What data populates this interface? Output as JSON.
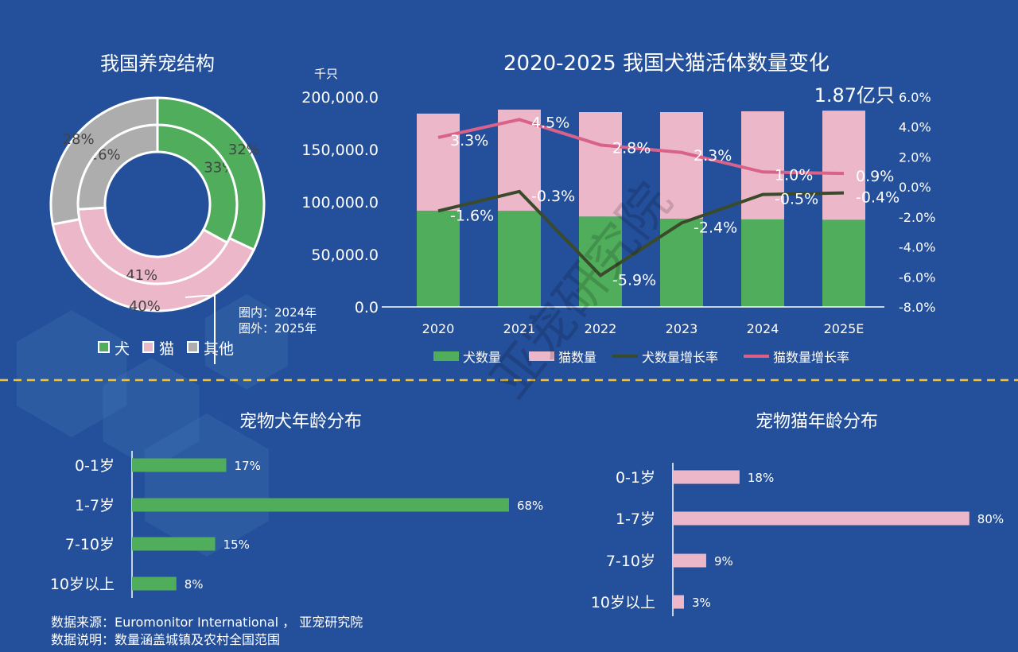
{
  "colors": {
    "dog": "#4fad5b",
    "cat": "#ecb8c9",
    "other": "#adadad",
    "dog_line": "#3a4a2a",
    "cat_line": "#d9628a",
    "divider": "#f2c23a",
    "background": "#244f9a"
  },
  "watermark": "亚宠研究院",
  "chart_data": [
    {
      "type": "pie",
      "title": "我国养宠结构",
      "categories": [
        "犬",
        "猫",
        "其他"
      ],
      "series": [
        {
          "name": "2024年",
          "ring": "inner",
          "values": [
            33,
            41,
            26
          ]
        },
        {
          "name": "2025年",
          "ring": "outer",
          "values": [
            32,
            40,
            28
          ]
        }
      ],
      "annotation": [
        "圈内：2024年",
        "圈外：2025年"
      ],
      "legend": "bottom"
    },
    {
      "type": "bar",
      "title": "2020-2025 我国犬猫活体数量变化",
      "ylabel": "千只",
      "annotation": "1.87亿只",
      "categories": [
        "2020",
        "2021",
        "2022",
        "2023",
        "2024",
        "2025E"
      ],
      "ylim": [
        0,
        200000
      ],
      "yticks": [
        "0.0",
        "50,000.0",
        "100,000.0",
        "150,000.0",
        "200,000.0"
      ],
      "y2lim": [
        -8,
        6
      ],
      "y2ticks": [
        "-8.0%",
        "-6.0%",
        "-4.0%",
        "-2.0%",
        "0.0%",
        "2.0%",
        "4.0%",
        "6.0%"
      ],
      "series": [
        {
          "name": "犬数量",
          "kind": "bar",
          "stacked": true,
          "values": [
            91700,
            91500,
            86100,
            84000,
            83400,
            83000
          ]
        },
        {
          "name": "猫数量",
          "kind": "bar",
          "stacked": true,
          "values": [
            92500,
            96500,
            99500,
            101600,
            103000,
            104000
          ]
        },
        {
          "name": "犬数量增长率",
          "kind": "line",
          "axis": "right",
          "values": [
            -1.6,
            -0.3,
            -5.9,
            -2.4,
            -0.5,
            -0.4
          ],
          "labels": [
            "-1.6%",
            "-0.3%",
            "-5.9%",
            "-2.4%",
            "-0.5%",
            "-0.4%"
          ]
        },
        {
          "name": "猫数量增长率",
          "kind": "line",
          "axis": "right",
          "values": [
            3.3,
            4.5,
            2.8,
            2.3,
            1.0,
            0.9
          ],
          "labels": [
            "3.3%",
            "4.5%",
            "2.8%",
            "2.3%",
            "1.0%",
            "0.9%"
          ]
        }
      ],
      "legend": "bottom"
    },
    {
      "type": "bar",
      "orientation": "horizontal",
      "title": "宠物犬年龄分布",
      "categories": [
        "0-1岁",
        "1-7岁",
        "7-10岁",
        "10岁以上"
      ],
      "values": [
        17,
        68,
        15,
        8
      ],
      "labels": [
        "17%",
        "68%",
        "15%",
        "8%"
      ]
    },
    {
      "type": "bar",
      "orientation": "horizontal",
      "title": "宠物猫年龄分布",
      "categories": [
        "0-1岁",
        "1-7岁",
        "7-10岁",
        "10岁以上"
      ],
      "values": [
        18,
        80,
        9,
        3
      ],
      "labels": [
        "18%",
        "80%",
        "9%",
        "3%"
      ]
    }
  ],
  "footer": [
    "数据来源：Euromonitor International ， 亚宠研究院",
    "数据说明：数量涵盖城镇及农村全国范围"
  ]
}
